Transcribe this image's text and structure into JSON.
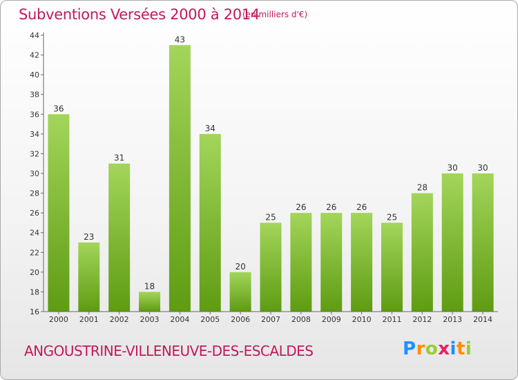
{
  "chart_data": {
    "type": "bar",
    "title": "Subventions Versées 2000 à 2014",
    "subtitle": "(en milliers d'€)",
    "categories": [
      "2000",
      "2001",
      "2002",
      "2003",
      "2004",
      "2005",
      "2006",
      "2007",
      "2008",
      "2009",
      "2010",
      "2011",
      "2012",
      "2013",
      "2014"
    ],
    "values": [
      36,
      23,
      31,
      18,
      43,
      34,
      20,
      25,
      26,
      26,
      26,
      25,
      28,
      30,
      30
    ],
    "ylim": [
      16,
      44
    ],
    "yticks": [
      16,
      18,
      20,
      22,
      24,
      26,
      28,
      30,
      32,
      34,
      36,
      38,
      40,
      42,
      44
    ],
    "grid": false,
    "bar_color": "#7cb82f",
    "title_color": "#c2185b"
  },
  "footer": {
    "commune": "ANGOUSTRINE-VILLENEUVE-DES-ESCALDES",
    "logo": "Proxiti"
  }
}
